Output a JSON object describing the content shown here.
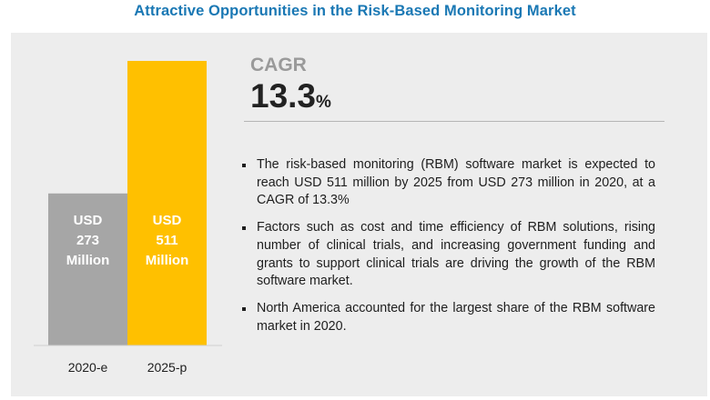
{
  "title": "Attractive Opportunities in the Risk-Based Monitoring Market",
  "cagr": {
    "label": "CAGR",
    "value": "13.3",
    "unit": "%"
  },
  "bullets": [
    "The risk-based monitoring (RBM) software market is expected to reach USD 511 million by 2025 from USD 273 million in 2020, at a CAGR of 13.3%",
    "Factors such as cost and time efficiency of RBM solutions, rising number of clinical trials, and increasing government funding and grants to support clinical trials are driving the growth of the RBM software market.",
    "North America accounted for the largest share of the RBM software market in 2020."
  ],
  "colors": {
    "title": "#1a78b4",
    "bar_2020": "#a6a6a6",
    "bar_2025": "#ffc000",
    "panel": "#ededed"
  },
  "chart_data": {
    "type": "bar",
    "categories": [
      "2020-e",
      "2025-p"
    ],
    "values": [
      273,
      511
    ],
    "bar_labels": [
      [
        "USD",
        "273",
        "Million"
      ],
      [
        "USD",
        "511",
        "Million"
      ]
    ],
    "grid": false,
    "ylim": [
      0,
      511
    ]
  }
}
